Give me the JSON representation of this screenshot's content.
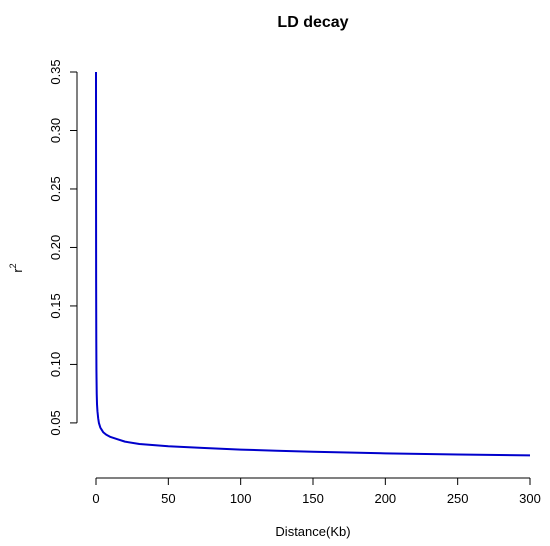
{
  "chart_data": {
    "type": "line",
    "title": "LD decay",
    "xlabel": "Distance(Kb)",
    "ylabel_base": "r",
    "ylabel_sup": "2",
    "xlim": [
      0,
      300
    ],
    "ylim": [
      0.02,
      0.35
    ],
    "xticks": [
      0,
      50,
      100,
      150,
      200,
      250,
      300
    ],
    "yticks": [
      0.05,
      0.1,
      0.15,
      0.2,
      0.25,
      0.3,
      0.35
    ],
    "xtick_labels": [
      "0",
      "50",
      "100",
      "150",
      "200",
      "250",
      "300"
    ],
    "ytick_labels": [
      "0.05",
      "0.10",
      "0.15",
      "0.20",
      "0.25",
      "0.30",
      "0.35"
    ],
    "grid": false,
    "series": [
      {
        "color": "#0000cc",
        "x": [
          0,
          0.05,
          0.1,
          0.2,
          0.3,
          0.5,
          0.7,
          1,
          1.5,
          2,
          3,
          4,
          5,
          7,
          10,
          15,
          20,
          30,
          40,
          50,
          75,
          100,
          125,
          150,
          200,
          250,
          300
        ],
        "y": [
          0.35,
          0.23,
          0.17,
          0.12,
          0.095,
          0.075,
          0.066,
          0.06,
          0.054,
          0.05,
          0.046,
          0.044,
          0.042,
          0.04,
          0.038,
          0.036,
          0.034,
          0.032,
          0.031,
          0.03,
          0.0285,
          0.0272,
          0.0262,
          0.0253,
          0.024,
          0.023,
          0.0222
        ]
      }
    ]
  }
}
